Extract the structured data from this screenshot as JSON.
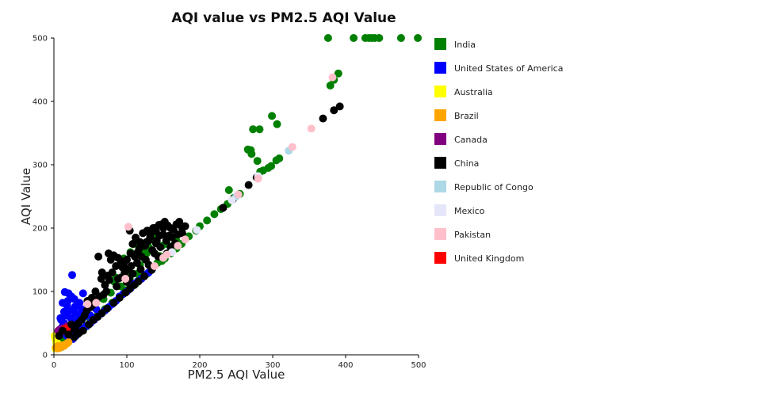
{
  "chart_data": {
    "type": "scatter",
    "title": "AQI value vs PM2.5 AQI Value",
    "xlabel": "PM2.5 AQI Value",
    "ylabel": "AQI Value",
    "xlim": [
      0,
      500
    ],
    "ylim": [
      0,
      500
    ],
    "xticks": [
      0,
      100,
      200,
      300,
      400,
      500
    ],
    "yticks": [
      0,
      100,
      200,
      300,
      400,
      500
    ],
    "grid": false,
    "legend_position": "right",
    "series": [
      {
        "name": "India",
        "color": "#008000",
        "points": [
          [
            376,
            500
          ],
          [
            411,
            500
          ],
          [
            427,
            500
          ],
          [
            432,
            500
          ],
          [
            436,
            500
          ],
          [
            446,
            500
          ],
          [
            476,
            500
          ],
          [
            499,
            500
          ],
          [
            440,
            500
          ],
          [
            390,
            444
          ],
          [
            379,
            425
          ],
          [
            384,
            434
          ],
          [
            306,
            364
          ],
          [
            299,
            377
          ],
          [
            273,
            356
          ],
          [
            282,
            356
          ],
          [
            266,
            324
          ],
          [
            271,
            317
          ],
          [
            270,
            323
          ],
          [
            279,
            306
          ],
          [
            283,
            289
          ],
          [
            287,
            291
          ],
          [
            294,
            295
          ],
          [
            298,
            298
          ],
          [
            305,
            307
          ],
          [
            309,
            310
          ],
          [
            240,
            260
          ],
          [
            255,
            254
          ],
          [
            247,
            248
          ],
          [
            238,
            238
          ],
          [
            229,
            230
          ],
          [
            220,
            222
          ],
          [
            210,
            212
          ],
          [
            200,
            203
          ],
          [
            195,
            196
          ],
          [
            185,
            187
          ],
          [
            175,
            175
          ],
          [
            168,
            168
          ],
          [
            160,
            160
          ],
          [
            152,
            152
          ],
          [
            148,
            148
          ],
          [
            142,
            145
          ],
          [
            135,
            137
          ],
          [
            128,
            128
          ],
          [
            120,
            123
          ],
          [
            112,
            112
          ],
          [
            105,
            107
          ],
          [
            98,
            102
          ],
          [
            90,
            92
          ],
          [
            80,
            82
          ],
          [
            70,
            72
          ],
          [
            60,
            62
          ],
          [
            57,
            85
          ],
          [
            50,
            52
          ],
          [
            45,
            45
          ],
          [
            40,
            42
          ],
          [
            33,
            35
          ],
          [
            26,
            27
          ],
          [
            20,
            22
          ],
          [
            15,
            16
          ],
          [
            12,
            25
          ],
          [
            10,
            12
          ],
          [
            110,
            175
          ],
          [
            120,
            165
          ],
          [
            96,
            152
          ],
          [
            105,
            162
          ],
          [
            130,
            170
          ],
          [
            145,
            156
          ],
          [
            118,
            142
          ],
          [
            114,
            128
          ],
          [
            104,
            120
          ],
          [
            92,
            108
          ],
          [
            85,
            122
          ],
          [
            78,
            98
          ],
          [
            68,
            88
          ],
          [
            83,
            115
          ],
          [
            140,
            190
          ],
          [
            155,
            175
          ],
          [
            102,
            132
          ],
          [
            148,
            172
          ],
          [
            127,
            160
          ],
          [
            136,
            182
          ],
          [
            168,
            180
          ]
        ]
      },
      {
        "name": "United States of America",
        "color": "#0000ff",
        "points": [
          [
            25,
            126
          ],
          [
            15,
            99
          ],
          [
            20,
            97
          ],
          [
            28,
            88
          ],
          [
            35,
            82
          ],
          [
            40,
            97
          ],
          [
            12,
            82
          ],
          [
            18,
            78
          ],
          [
            22,
            70
          ],
          [
            30,
            65
          ],
          [
            38,
            72
          ],
          [
            45,
            68
          ],
          [
            17,
            62
          ],
          [
            23,
            58
          ],
          [
            10,
            55
          ],
          [
            14,
            50
          ],
          [
            27,
            50
          ],
          [
            33,
            55
          ],
          [
            42,
            60
          ],
          [
            50,
            62
          ],
          [
            55,
            58
          ],
          [
            12,
            45
          ],
          [
            16,
            40
          ],
          [
            20,
            42
          ],
          [
            25,
            38
          ],
          [
            30,
            36
          ],
          [
            35,
            40
          ],
          [
            40,
            42
          ],
          [
            45,
            46
          ],
          [
            50,
            50
          ],
          [
            55,
            55
          ],
          [
            60,
            60
          ],
          [
            65,
            65
          ],
          [
            70,
            70
          ],
          [
            75,
            75
          ],
          [
            80,
            80
          ],
          [
            85,
            85
          ],
          [
            90,
            92
          ],
          [
            95,
            96
          ],
          [
            100,
            100
          ],
          [
            105,
            105
          ],
          [
            110,
            112
          ],
          [
            115,
            116
          ],
          [
            120,
            120
          ],
          [
            125,
            126
          ],
          [
            130,
            130
          ],
          [
            135,
            136
          ],
          [
            18,
            30
          ],
          [
            22,
            28
          ],
          [
            26,
            25
          ],
          [
            30,
            30
          ],
          [
            11,
            35
          ],
          [
            13,
            48
          ],
          [
            19,
            85
          ],
          [
            24,
            92
          ],
          [
            29,
            76
          ],
          [
            36,
            64
          ],
          [
            48,
            78
          ],
          [
            58,
            72
          ],
          [
            14,
            68
          ],
          [
            9,
            58
          ]
        ]
      },
      {
        "name": "Australia",
        "color": "#ffff00",
        "points": [
          [
            2,
            25
          ],
          [
            3,
            20
          ],
          [
            4,
            15
          ],
          [
            5,
            18
          ],
          [
            1,
            30
          ],
          [
            2,
            10
          ],
          [
            3,
            28
          ]
        ]
      },
      {
        "name": "Brazil",
        "color": "#ffa500",
        "points": [
          [
            3,
            12
          ],
          [
            6,
            14
          ],
          [
            9,
            12
          ],
          [
            12,
            15
          ],
          [
            15,
            16
          ],
          [
            18,
            18
          ],
          [
            5,
            10
          ],
          [
            8,
            11
          ],
          [
            20,
            20
          ],
          [
            4,
            13
          ],
          [
            11,
            13
          ],
          [
            14,
            14
          ]
        ]
      },
      {
        "name": "Canada",
        "color": "#800080",
        "points": [
          [
            8,
            40
          ],
          [
            10,
            36
          ],
          [
            14,
            38
          ],
          [
            18,
            45
          ],
          [
            22,
            40
          ],
          [
            26,
            44
          ],
          [
            30,
            46
          ],
          [
            12,
            42
          ],
          [
            6,
            38
          ]
        ]
      },
      {
        "name": "China",
        "color": "#000000",
        "points": [
          [
            392,
            392
          ],
          [
            384,
            386
          ],
          [
            369,
            373
          ],
          [
            278,
            280
          ],
          [
            267,
            268
          ],
          [
            245,
            245
          ],
          [
            232,
            232
          ],
          [
            61,
            155
          ],
          [
            75,
            160
          ],
          [
            78,
            150
          ],
          [
            82,
            157
          ],
          [
            88,
            153
          ],
          [
            92,
            148
          ],
          [
            96,
            145
          ],
          [
            100,
            150
          ],
          [
            105,
            160
          ],
          [
            108,
            175
          ],
          [
            112,
            185
          ],
          [
            118,
            178
          ],
          [
            122,
            192
          ],
          [
            128,
            196
          ],
          [
            132,
            190
          ],
          [
            136,
            200
          ],
          [
            140,
            195
          ],
          [
            144,
            205
          ],
          [
            148,
            206
          ],
          [
            152,
            210
          ],
          [
            156,
            204
          ],
          [
            160,
            200
          ],
          [
            164,
            198
          ],
          [
            168,
            206
          ],
          [
            172,
            210
          ],
          [
            176,
            200
          ],
          [
            180,
            203
          ],
          [
            141,
            180
          ],
          [
            150,
            190
          ],
          [
            158,
            188
          ],
          [
            130,
            180
          ],
          [
            125,
            172
          ],
          [
            115,
            162
          ],
          [
            106,
            140
          ],
          [
            101,
            135
          ],
          [
            97,
            130
          ],
          [
            92,
            122
          ],
          [
            85,
            140
          ],
          [
            80,
            130
          ],
          [
            76,
            118
          ],
          [
            70,
            110
          ],
          [
            65,
            120
          ],
          [
            72,
            100
          ],
          [
            68,
            95
          ],
          [
            62,
            92
          ],
          [
            58,
            85
          ],
          [
            55,
            80
          ],
          [
            50,
            75
          ],
          [
            45,
            70
          ],
          [
            42,
            62
          ],
          [
            38,
            55
          ],
          [
            34,
            50
          ],
          [
            30,
            45
          ],
          [
            28,
            40
          ],
          [
            33,
            33
          ],
          [
            40,
            38
          ],
          [
            48,
            48
          ],
          [
            54,
            55
          ],
          [
            60,
            60
          ],
          [
            66,
            66
          ],
          [
            73,
            73
          ],
          [
            82,
            82
          ],
          [
            90,
            90
          ],
          [
            98,
            98
          ],
          [
            104,
            104
          ],
          [
            110,
            110
          ],
          [
            116,
            116
          ],
          [
            124,
            124
          ],
          [
            134,
            134
          ],
          [
            138,
            160
          ],
          [
            126,
            150
          ],
          [
            114,
            145
          ],
          [
            103,
            120
          ],
          [
            154,
            180
          ],
          [
            162,
            186
          ],
          [
            146,
            170
          ],
          [
            135,
            165
          ],
          [
            120,
            155
          ],
          [
            100,
            115
          ],
          [
            94,
            138
          ],
          [
            86,
            108
          ],
          [
            108,
            128
          ],
          [
            119,
            135
          ],
          [
            130,
            142
          ],
          [
            143,
            155
          ],
          [
            155,
            160
          ],
          [
            166,
            176
          ],
          [
            170,
            190
          ],
          [
            176,
            192
          ],
          [
            160,
            170
          ],
          [
            145,
            188
          ],
          [
            150,
            200
          ],
          [
            140,
            176
          ],
          [
            132,
            186
          ],
          [
            127,
            178
          ],
          [
            138,
            200
          ],
          [
            117,
            168
          ],
          [
            111,
            155
          ],
          [
            104,
            196
          ],
          [
            88,
            120
          ],
          [
            74,
            125
          ],
          [
            66,
            130
          ],
          [
            57,
            100
          ],
          [
            52,
            90
          ],
          [
            46,
            85
          ],
          [
            24,
            48
          ],
          [
            20,
            32
          ],
          [
            35,
            35
          ],
          [
            28,
            28
          ],
          [
            12,
            38
          ],
          [
            7,
            30
          ]
        ]
      },
      {
        "name": "Republic of Congo",
        "color": "#add8e6",
        "points": [
          [
            322,
            322
          ],
          [
            250,
            250
          ]
        ]
      },
      {
        "name": "Mexico",
        "color": "#e6e6fa",
        "points": [
          [
            280,
            282
          ],
          [
            196,
            197
          ],
          [
            244,
            244
          ],
          [
            162,
            162
          ]
        ]
      },
      {
        "name": "Pakistan",
        "color": "#ffc0cb",
        "points": [
          [
            353,
            357
          ],
          [
            382,
            438
          ],
          [
            327,
            328
          ],
          [
            280,
            278
          ],
          [
            253,
            253
          ],
          [
            180,
            182
          ],
          [
            170,
            172
          ],
          [
            150,
            153
          ],
          [
            138,
            140
          ],
          [
            102,
            202
          ],
          [
            98,
            120
          ],
          [
            58,
            82
          ],
          [
            46,
            80
          ],
          [
            155,
            158
          ]
        ]
      },
      {
        "name": "United Kingdom",
        "color": "#ff0000",
        "points": [
          [
            14,
            40
          ],
          [
            18,
            42
          ]
        ]
      }
    ]
  }
}
